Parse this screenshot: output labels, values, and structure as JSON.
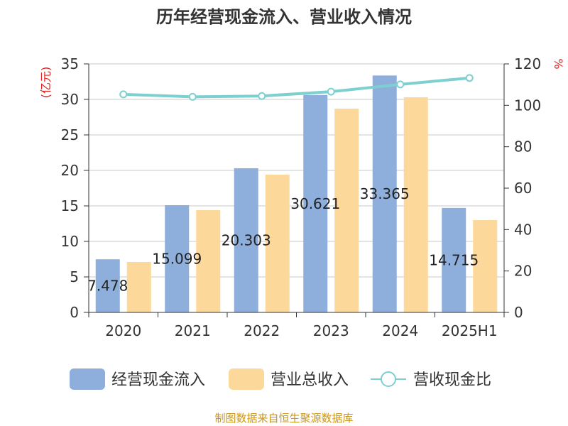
{
  "chart_data": {
    "type": "bar",
    "title": "历年经营现金流入、营业收入情况",
    "left_unit": "(亿元)",
    "right_unit": "%",
    "categories": [
      "2020",
      "2021",
      "2022",
      "2023",
      "2024",
      "2025H1"
    ],
    "ylim_left": [
      0,
      35
    ],
    "yticks_left": [
      0,
      5,
      10,
      15,
      20,
      25,
      30,
      35
    ],
    "ylim_right": [
      0,
      120
    ],
    "yticks_right": [
      0,
      20,
      40,
      60,
      80,
      100,
      120
    ],
    "grid": true,
    "legend_position": "bottom",
    "series": [
      {
        "name": "经营现金流入",
        "type": "bar",
        "axis": "left",
        "color": "#8eaedb",
        "values": [
          7.478,
          15.099,
          20.303,
          30.621,
          33.365,
          14.715
        ],
        "labels": [
          "7.478",
          "15.099",
          "20.303",
          "30.621",
          "33.365",
          "14.715"
        ]
      },
      {
        "name": "营业总收入",
        "type": "bar",
        "axis": "left",
        "color": "#fdd89b",
        "values": [
          7.1,
          14.4,
          19.4,
          28.7,
          30.3,
          13.0
        ]
      },
      {
        "name": "营收现金比",
        "type": "line",
        "axis": "right",
        "color": "#7ecfd0",
        "values": [
          105.3,
          104.1,
          104.5,
          106.6,
          110.1,
          113.2
        ]
      }
    ]
  },
  "source": "制图数据来自恒生聚源数据库"
}
